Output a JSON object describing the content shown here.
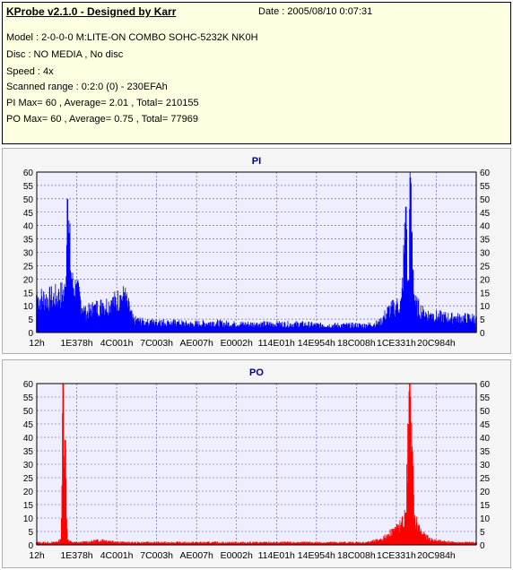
{
  "header": {
    "title": "KProbe v2.1.0 - Designed by Karr",
    "date": "Date : 2005/08/10 0:07:31",
    "lines": [
      "Model : 2-0-0-0 M:LITE-ON COMBO SOHC-5232K NK0H",
      "Disc : NO MEDIA , No disc",
      "Speed : 4x",
      "Scanned range : 0:2:0 (0) - 230EFAh",
      "PI Max= 60 , Average= 2.01 , Total= 210155",
      "PO Max= 60 , Average= 0.75 , Total= 77969"
    ]
  },
  "colors": {
    "pi": "#0000ff",
    "po": "#ff0000",
    "plot_bg": "#eeeeff",
    "panel_bg": "#ffffe1"
  },
  "chart_data": [
    {
      "type": "area",
      "title": "PI",
      "series_color": "#0000ff",
      "x_tick_labels": [
        "12h",
        "1E378h",
        "4C001h",
        "7C003h",
        "AE007h",
        "E0002h",
        "114E01h",
        "14E954h",
        "18C008h",
        "1CE331h",
        "20C984h"
      ],
      "y_ticks": [
        0,
        5,
        10,
        15,
        20,
        25,
        30,
        35,
        40,
        45,
        50,
        55,
        60
      ],
      "ylim": [
        0,
        60
      ],
      "x_points": [
        0,
        3,
        5,
        6.5,
        7,
        8,
        9,
        11,
        13,
        15,
        17,
        19,
        20,
        21,
        22,
        23,
        24,
        25,
        26,
        27,
        28,
        30,
        32,
        35,
        40,
        45,
        50,
        55,
        60,
        65,
        70,
        75,
        78,
        80,
        81,
        82,
        83,
        84,
        84.5,
        85,
        86,
        88,
        90,
        95,
        100
      ],
      "values": [
        14,
        14,
        15,
        17,
        50,
        20,
        18,
        8,
        10,
        11,
        12,
        14,
        15,
        10,
        5,
        5,
        4.5,
        4,
        4.5,
        4,
        4.5,
        4,
        4,
        3.5,
        4,
        3.5,
        3.5,
        3.5,
        3.5,
        3,
        3,
        3,
        4,
        9,
        10,
        11,
        12,
        47,
        15,
        58,
        12,
        8,
        7,
        6,
        6
      ],
      "grid": true,
      "grid_style": "dotted"
    },
    {
      "type": "area",
      "title": "PO",
      "series_color": "#ff0000",
      "x_tick_labels": [
        "12h",
        "1E378h",
        "4C001h",
        "7C003h",
        "AE007h",
        "E0002h",
        "114E01h",
        "14E954h",
        "18C008h",
        "1CE331h",
        "20C984h"
      ],
      "y_ticks": [
        0,
        5,
        10,
        15,
        20,
        25,
        30,
        35,
        40,
        45,
        50,
        55,
        60
      ],
      "ylim": [
        0,
        60
      ],
      "x_points": [
        0,
        4,
        5.5,
        6,
        6.5,
        7,
        8,
        10,
        15,
        20,
        25,
        30,
        40,
        50,
        60,
        70,
        75,
        78,
        80,
        81,
        82,
        83,
        84,
        84.5,
        85,
        86,
        87,
        88,
        90,
        95,
        100
      ],
      "values": [
        1,
        1,
        2,
        60,
        39,
        2,
        1,
        1,
        2,
        1,
        1,
        1,
        1,
        1,
        1,
        1,
        1,
        2,
        4,
        6,
        7,
        8,
        12,
        45,
        55,
        10,
        7,
        4,
        2,
        1,
        1
      ],
      "grid": true,
      "grid_style": "dotted"
    }
  ]
}
